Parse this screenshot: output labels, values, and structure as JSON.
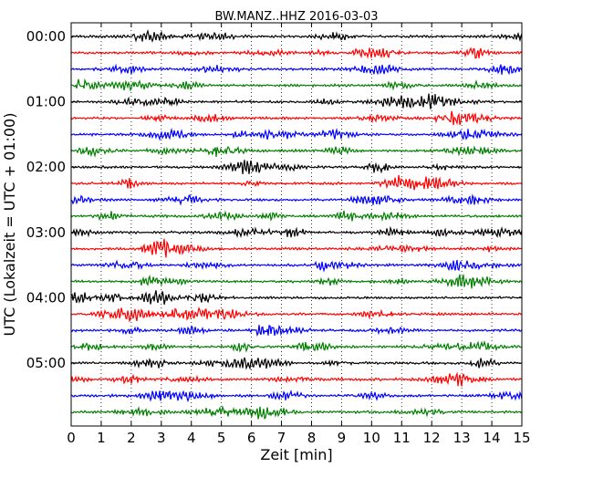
{
  "chart_data": {
    "type": "line",
    "title": "BW.MANZ..HHZ 2016-03-03",
    "xlabel": "Zeit  [min]",
    "ylabel": "UTC (Lokalzeit = UTC + 01:00)",
    "xlim": [
      0,
      15
    ],
    "x_ticks": [
      "0",
      "1",
      "2",
      "3",
      "4",
      "5",
      "6",
      "7",
      "8",
      "9",
      "10",
      "11",
      "12",
      "13",
      "14",
      "15"
    ],
    "y_ticks": [
      "00:00",
      "01:00",
      "02:00",
      "03:00",
      "04:00",
      "05:00"
    ],
    "vertical_grid": "dotted",
    "trace_colors": [
      "#000000",
      "#ff0000",
      "#0000ff",
      "#007f00"
    ],
    "trace_count": 24,
    "trace_interval_min": 15
  }
}
